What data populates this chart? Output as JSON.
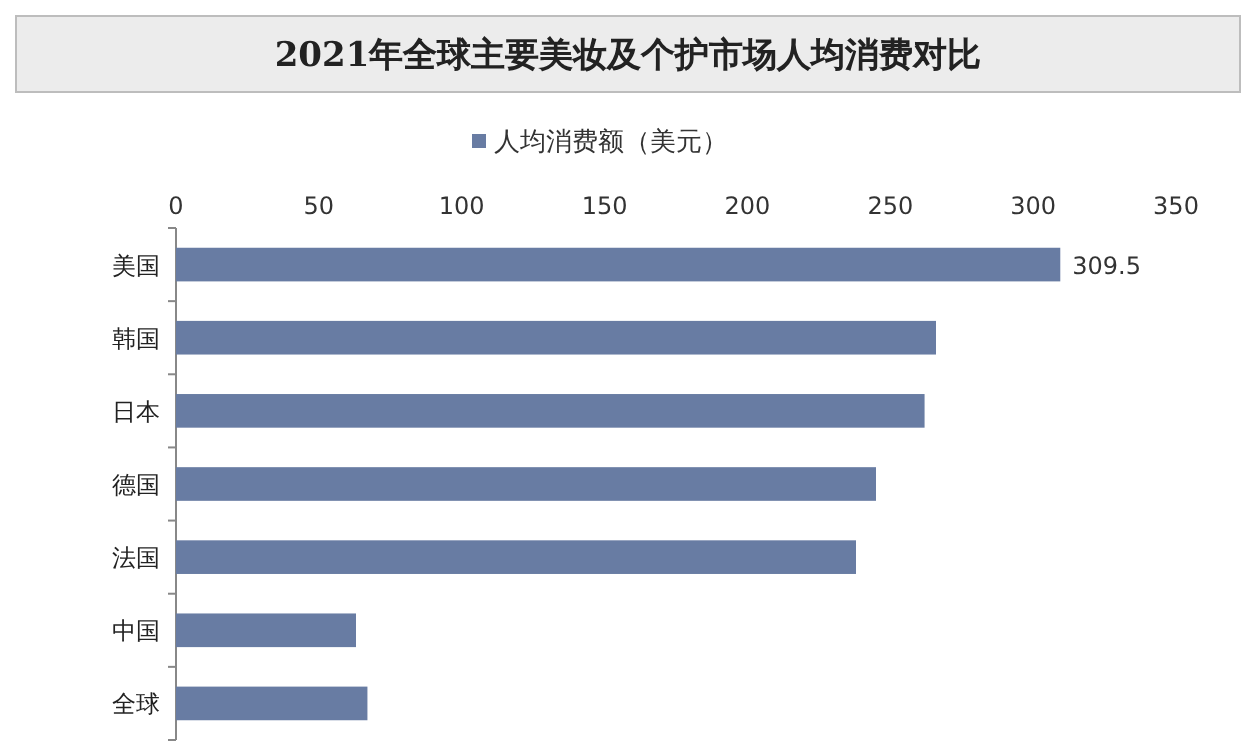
{
  "chart_data": {
    "type": "bar",
    "orientation": "horizontal",
    "title": "2021年全球主要美妆及个护市场人均消费对比",
    "categories": [
      "美国",
      "韩国",
      "日本",
      "德国",
      "法国",
      "中国",
      "全球"
    ],
    "series": [
      {
        "name": "人均消费额（美元）",
        "color": "#687ca3",
        "values": [
          309.5,
          266,
          262,
          245,
          238,
          63,
          67
        ],
        "value_labels": [
          "309.5",
          null,
          null,
          null,
          null,
          null,
          null
        ]
      }
    ],
    "xlim": [
      0,
      350
    ],
    "xticks": [
      0,
      50,
      100,
      150,
      200,
      250,
      300,
      350
    ],
    "grid": false,
    "legend": "top"
  }
}
